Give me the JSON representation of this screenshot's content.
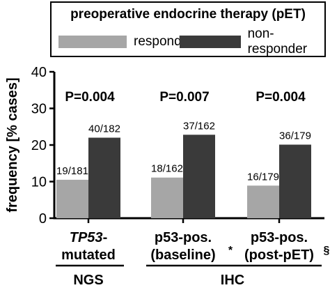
{
  "chart_data": {
    "type": "bar",
    "title": "",
    "legend": {
      "title": "preoperative endocrine therapy (pET)",
      "placement": "top"
    },
    "ylabel": "frequency [% cases]",
    "xlabel": "",
    "ylim": [
      0,
      40
    ],
    "yticks": [
      0,
      10,
      20,
      30,
      40
    ],
    "grid": false,
    "categories": [
      {
        "line1": "TP53",
        "line1_suffix": "-",
        "line2": "mutated",
        "mark": ""
      },
      {
        "line1": "p53-pos.",
        "line1_suffix": "",
        "line2": "(baseline)",
        "mark": "*"
      },
      {
        "line1": "p53-pos.",
        "line1_suffix": "",
        "line2": "(post-pET)",
        "mark": "§"
      }
    ],
    "groups": [
      {
        "label": "NGS",
        "categories": [
          0
        ]
      },
      {
        "label": "IHC",
        "categories": [
          1,
          2
        ]
      }
    ],
    "series": [
      {
        "name": "responder",
        "color": "#a6a6a6",
        "values": [
          10.5,
          11.1,
          8.9
        ],
        "labels": [
          "19/181",
          "18/162",
          "16/179"
        ]
      },
      {
        "name": "non-responder",
        "color": "#3a3a3a",
        "values": [
          22.0,
          22.8,
          20.1
        ],
        "labels": [
          "40/182",
          "37/162",
          "36/179"
        ]
      }
    ],
    "pvalues": [
      "P=0.004",
      "P=0.007",
      "P=0.004"
    ]
  }
}
